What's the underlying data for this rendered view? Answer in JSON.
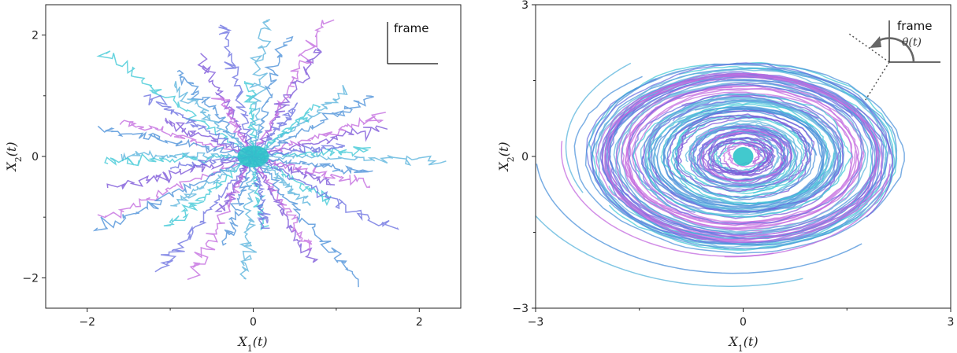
{
  "chart_data": [
    {
      "type": "line",
      "panel": "left",
      "description_pattern": "radial Brownian trajectories spreading out from origin",
      "xlabel": "X_1(t)",
      "ylabel": "X_2(t)",
      "xlim": [
        -2.5,
        2.5
      ],
      "ylim": [
        -2.5,
        2.5
      ],
      "xticks": [
        -2,
        0,
        2
      ],
      "yticks": [
        -2,
        0,
        2
      ],
      "xtick_labels": [
        "−2",
        "0",
        "2"
      ],
      "ytick_labels": [
        "−2",
        "0",
        "2"
      ],
      "inset_label": "frame",
      "trajectory_count": 48,
      "colors": [
        "#3ec8d6",
        "#6a6fe0",
        "#7b55d8",
        "#c36adf",
        "#4a90d9",
        "#5ab4dc"
      ]
    },
    {
      "type": "line",
      "panel": "right",
      "description_pattern": "rotating spiral trajectories circling the origin",
      "xlabel": "X_1(t)",
      "ylabel": "X_2(t)",
      "xlim": [
        -3,
        3
      ],
      "ylim": [
        -3,
        3
      ],
      "xticks": [
        -3,
        0,
        3
      ],
      "yticks": [
        -3,
        0,
        3
      ],
      "xtick_labels": [
        "−3",
        "0",
        "3"
      ],
      "ytick_labels": [
        "−3",
        "0",
        "3"
      ],
      "inset_label": "frame",
      "inset_angle_label": "θ(t)",
      "trajectory_count": 40,
      "colors": [
        "#3ec8d6",
        "#6a6fe0",
        "#7b55d8",
        "#c36adf",
        "#4a90d9",
        "#5ab4dc"
      ]
    }
  ]
}
